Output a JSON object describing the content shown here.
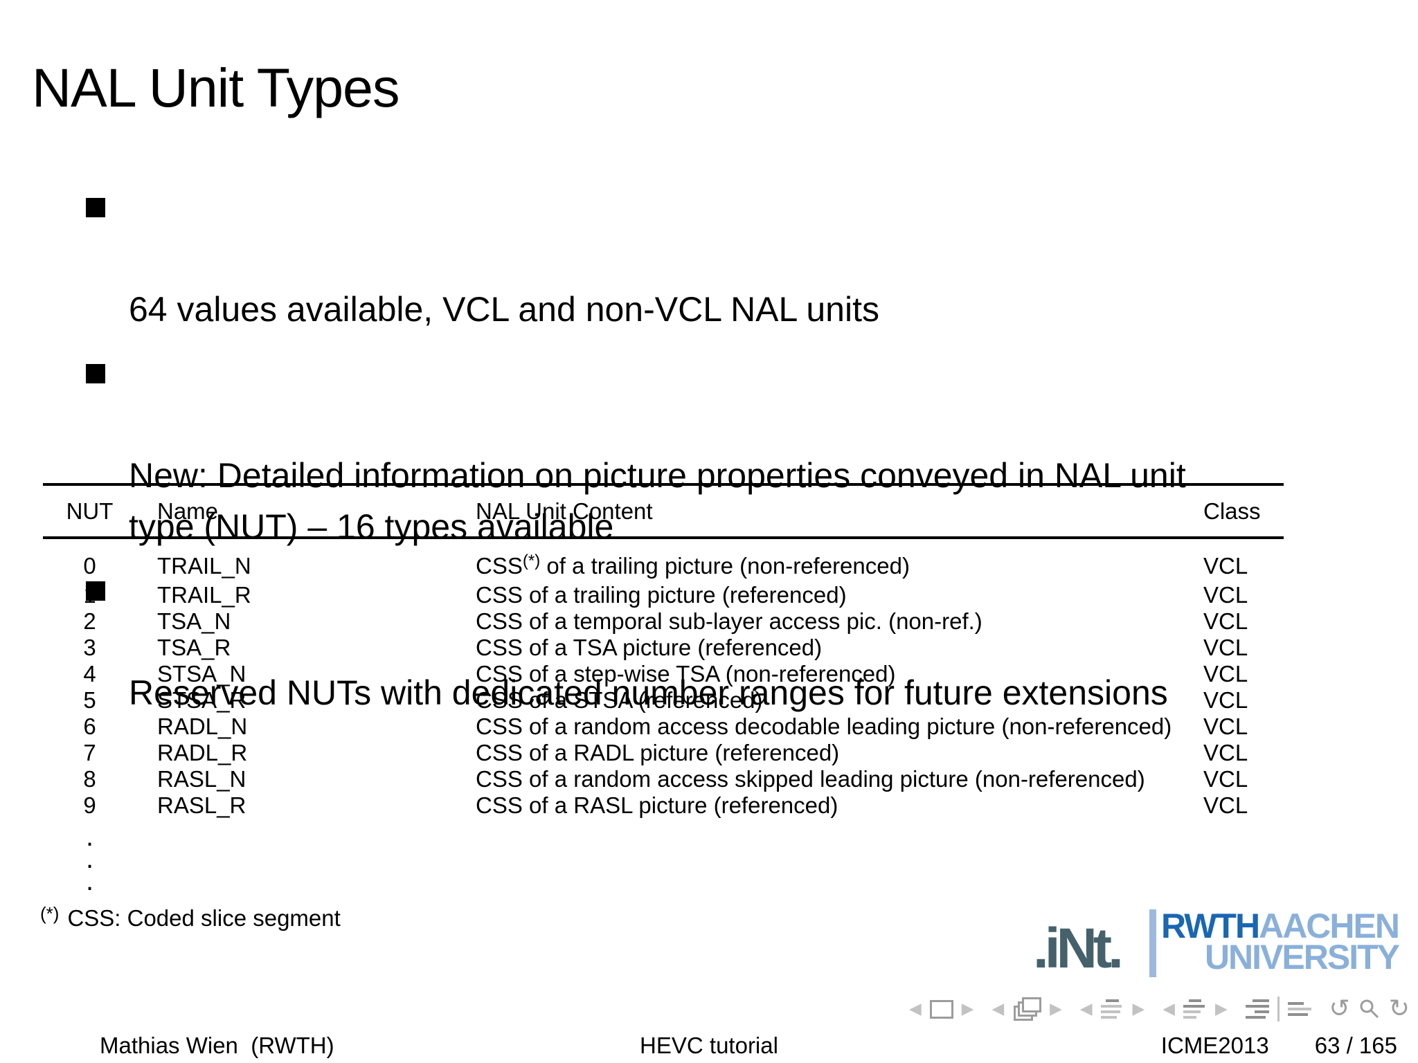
{
  "title": "NAL Unit Types",
  "bullets": [
    "64 values available, VCL and non-VCL NAL units",
    "New: Detailed information on picture properties conveyed in NAL unit\ntype (NUT) – 16 types available",
    "Reserved NUTs with dedicated number ranges for future extensions"
  ],
  "table": {
    "headers": [
      "NUT",
      "Name",
      "NAL Unit Content",
      "Class"
    ],
    "rows": [
      {
        "nut": "0",
        "name": "TRAIL_N",
        "pre": "CSS",
        "sup": "(*)",
        "post": " of a trailing picture (non-referenced)",
        "cls": "VCL"
      },
      {
        "nut": "1",
        "name": "TRAIL_R",
        "pre": "CSS of a trailing picture (referenced)",
        "sup": "",
        "post": "",
        "cls": "VCL"
      },
      {
        "nut": "2",
        "name": "TSA_N",
        "pre": "CSS of a temporal sub-layer access pic. (non-ref.)",
        "sup": "",
        "post": "",
        "cls": "VCL"
      },
      {
        "nut": "3",
        "name": "TSA_R",
        "pre": "CSS of a TSA picture (referenced)",
        "sup": "",
        "post": "",
        "cls": "VCL"
      },
      {
        "nut": "4",
        "name": "STSA_N",
        "pre": "CSS of a step-wise TSA (non-referenced)",
        "sup": "",
        "post": "",
        "cls": "VCL"
      },
      {
        "nut": "5",
        "name": "STSA_R",
        "pre": "CSS of a STSA (referenced)",
        "sup": "",
        "post": "",
        "cls": "VCL"
      },
      {
        "nut": "6",
        "name": "RADL_N",
        "pre": "CSS of a random access decodable leading picture (non-referenced)",
        "sup": "",
        "post": "",
        "cls": "VCL"
      },
      {
        "nut": "7",
        "name": "RADL_R",
        "pre": "CSS of a RADL picture (referenced)",
        "sup": "",
        "post": "",
        "cls": "VCL"
      },
      {
        "nut": "8",
        "name": "RASL_N",
        "pre": "CSS of a random access skipped leading picture (non-referenced)",
        "sup": "",
        "post": "",
        "cls": "VCL"
      },
      {
        "nut": "9",
        "name": "RASL_R",
        "pre": "CSS of a RASL picture (referenced)",
        "sup": "",
        "post": "",
        "cls": "VCL"
      }
    ],
    "vdot": "."
  },
  "footnote": {
    "marker": "(*)",
    "text": "CSS: Coded slice segment"
  },
  "logos": {
    "int_text": ".iNt.",
    "rwth": "RWTH",
    "aachen": "AACHEN",
    "university": "UNIVERSITY"
  },
  "nav": {
    "left_triangle": "◀",
    "right_triangle": "▶",
    "undo_glyph": "↺",
    "redo_glyph": "↻"
  },
  "footer": {
    "author": "Mathias Wien  (RWTH)",
    "deck_title": "HEVC tutorial",
    "conference": "ICME2013",
    "page": "63 / 165"
  },
  "colors": {
    "ink": "#000000",
    "nav_gray": "#9c9c9c",
    "nav_gray_dark": "#8f8f8f",
    "nav_light": "#c2c2c2",
    "int_slate": "#45616c",
    "rwth_dark": "#1a66b2",
    "rwth_light": "#8ab0da",
    "logo_sep": "#9db9dd"
  }
}
